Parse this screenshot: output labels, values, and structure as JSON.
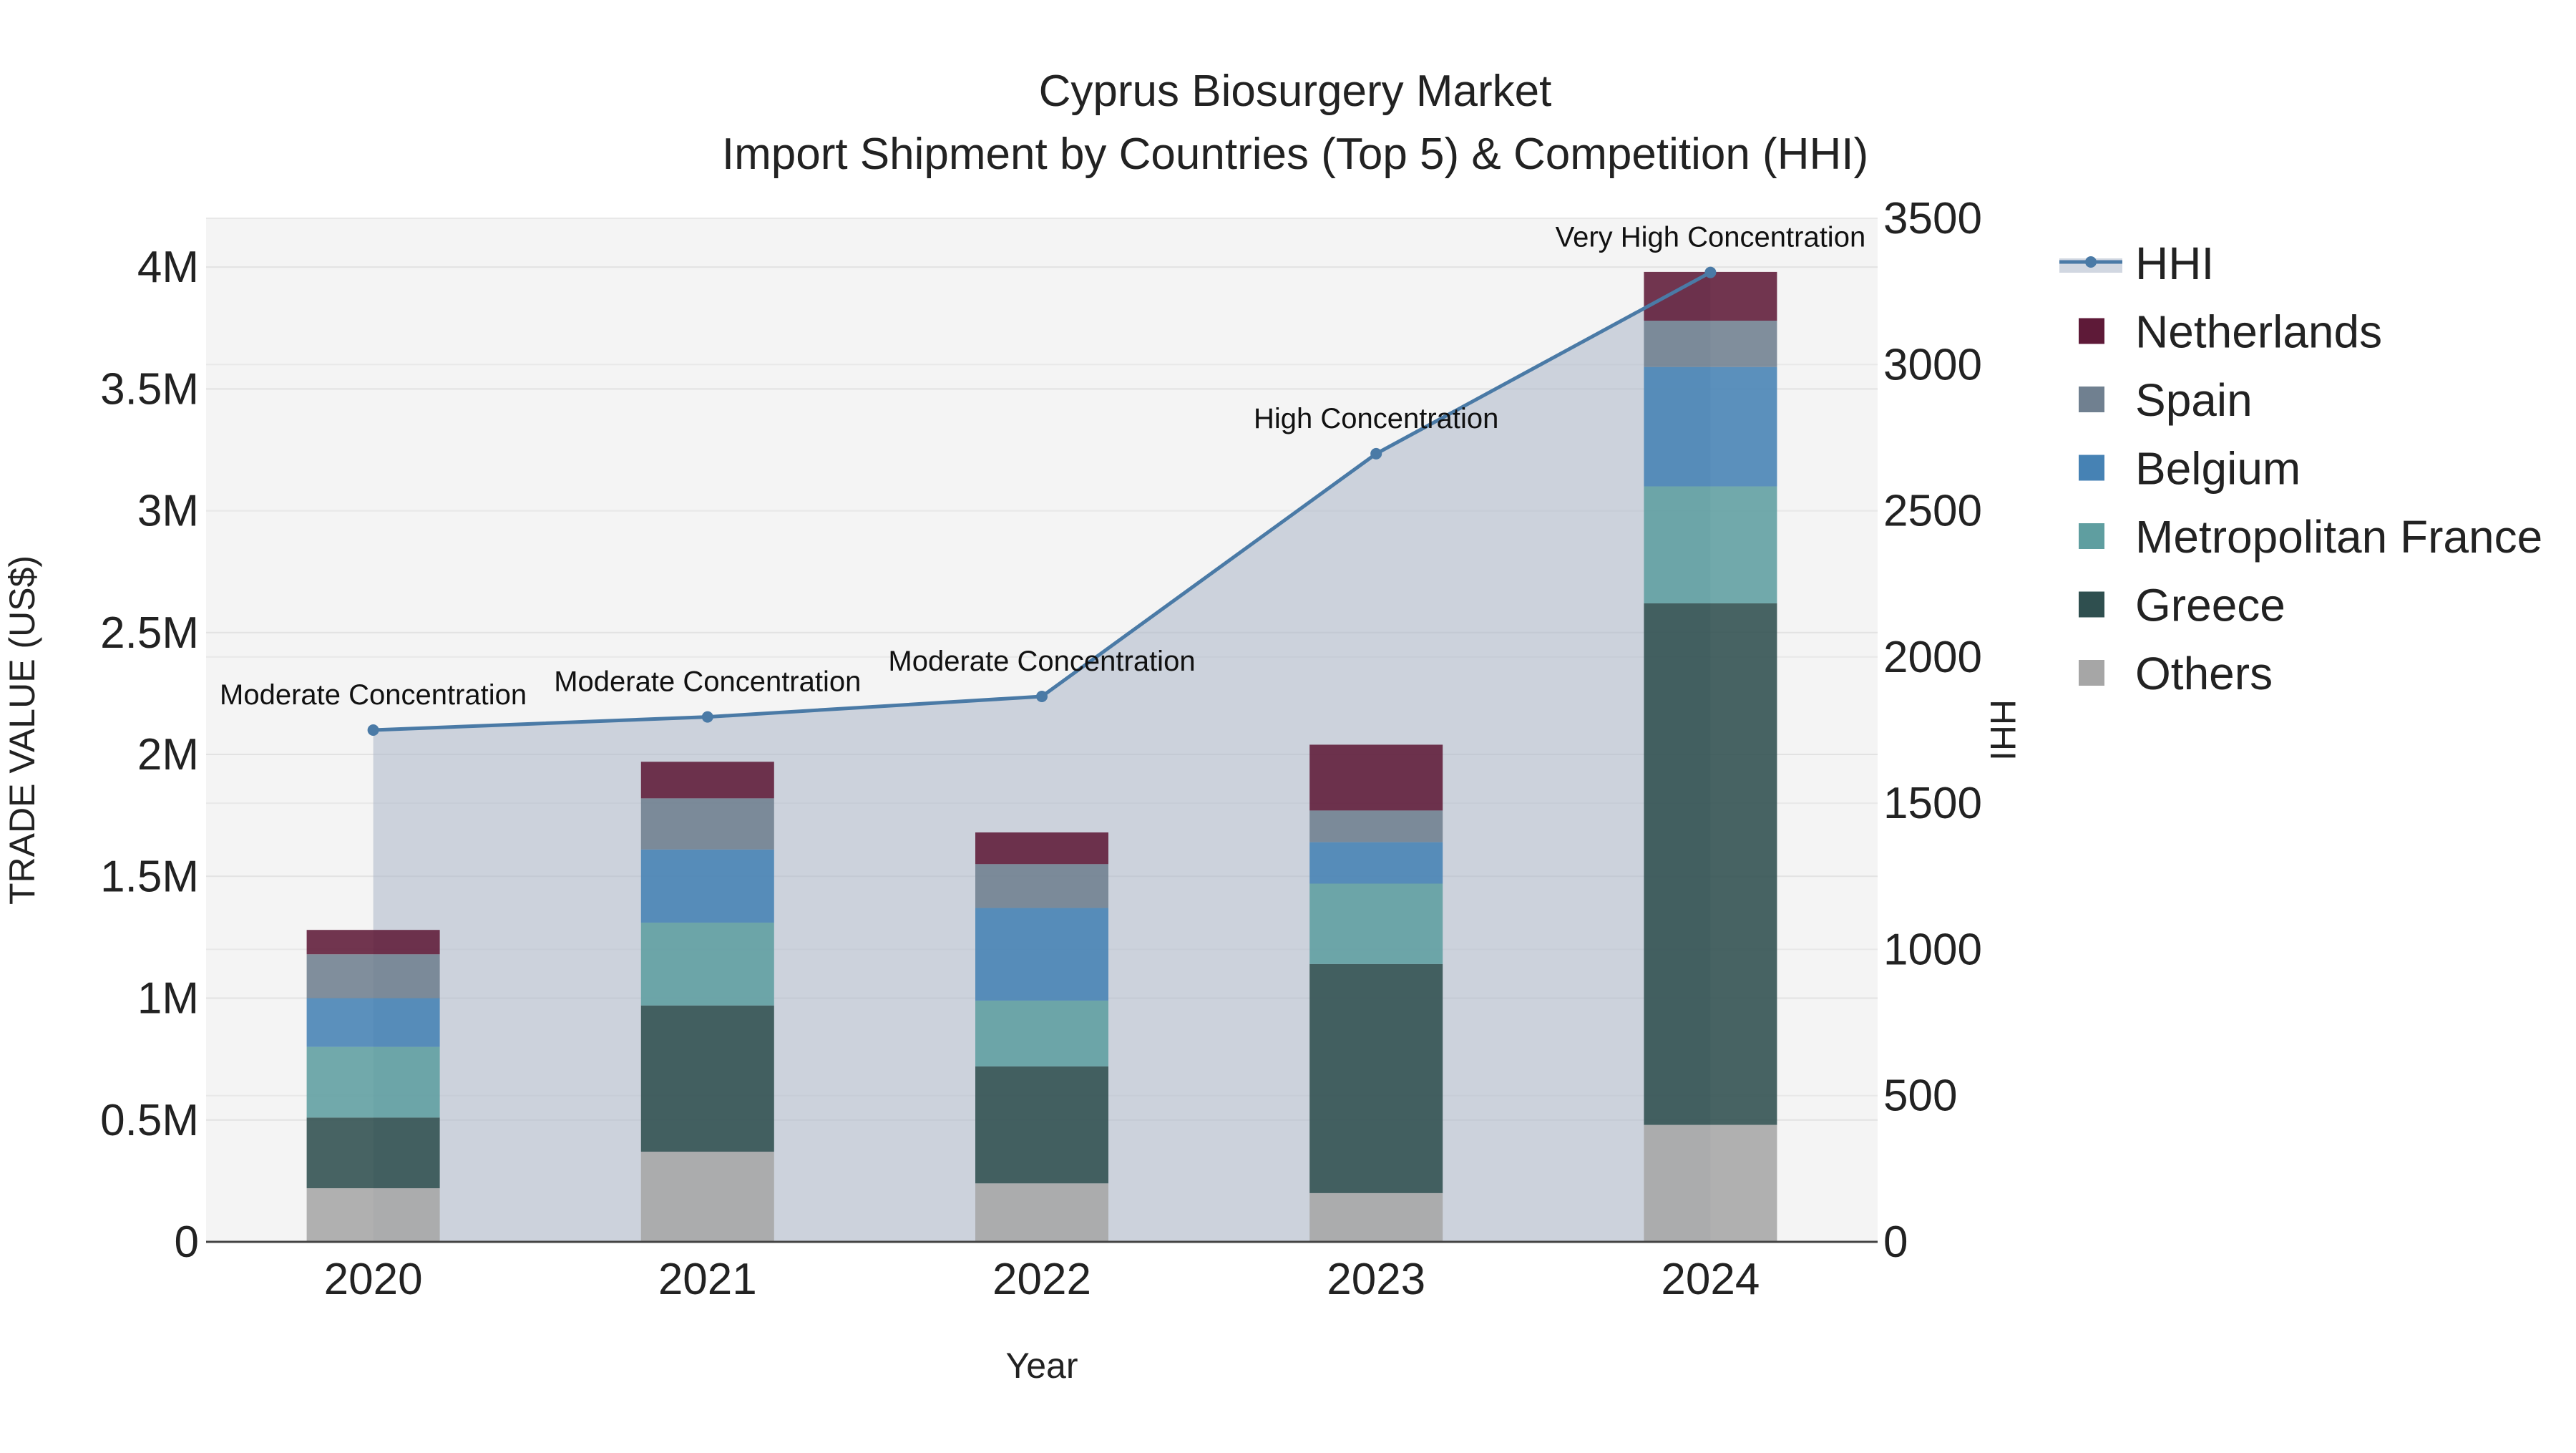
{
  "chart_data": {
    "type": "bar",
    "title": "Cyprus Biosurgery Market",
    "subtitle": "Import Shipment by Countries (Top 5) & Competition (HHI)",
    "xlabel": "Year",
    "ylabel": "TRADE VALUE (US$)",
    "y2label": "HHI",
    "categories": [
      "2020",
      "2021",
      "2022",
      "2023",
      "2024"
    ],
    "ylim": [
      0,
      4200000
    ],
    "y2lim": [
      0,
      3500
    ],
    "yticks": [
      0,
      500000,
      1000000,
      1500000,
      2000000,
      2500000,
      3000000,
      3500000,
      4000000
    ],
    "ytick_labels": [
      "0",
      "0.5M",
      "1M",
      "1.5M",
      "2M",
      "2.5M",
      "3M",
      "3.5M",
      "4M"
    ],
    "y2ticks": [
      0,
      500,
      1000,
      1500,
      2000,
      2500,
      3000,
      3500
    ],
    "y2tick_labels": [
      "0",
      "500",
      "1000",
      "1500",
      "2000",
      "2500",
      "3000",
      "3500"
    ],
    "series": [
      {
        "name": "Others",
        "color": "#a6a6a6",
        "values": [
          220000,
          370000,
          240000,
          200000,
          480000
        ]
      },
      {
        "name": "Greece",
        "color": "#2f4f4f",
        "values": [
          290000,
          600000,
          480000,
          940000,
          2140000
        ]
      },
      {
        "name": "Metropolitan France",
        "color": "#5f9ea0",
        "values": [
          290000,
          340000,
          270000,
          330000,
          480000
        ]
      },
      {
        "name": "Belgium",
        "color": "#4682b4",
        "values": [
          200000,
          300000,
          380000,
          170000,
          490000
        ]
      },
      {
        "name": "Spain",
        "color": "#708090",
        "values": [
          180000,
          210000,
          180000,
          130000,
          190000
        ]
      },
      {
        "name": "Netherlands",
        "color": "#5e1a38",
        "values": [
          100000,
          150000,
          130000,
          270000,
          200000
        ]
      }
    ],
    "hhi": {
      "name": "HHI",
      "color": "#4a7aa6",
      "values": [
        1750,
        1795,
        1865,
        2695,
        3315
      ],
      "labels": [
        "Moderate Concentration",
        "Moderate Concentration",
        "Moderate Concentration",
        "High Concentration",
        "Very High Concentration"
      ]
    },
    "legend": [
      "HHI",
      "Netherlands",
      "Spain",
      "Belgium",
      "Metropolitan France",
      "Greece",
      "Others"
    ],
    "legend_position": "right",
    "grid": true
  }
}
